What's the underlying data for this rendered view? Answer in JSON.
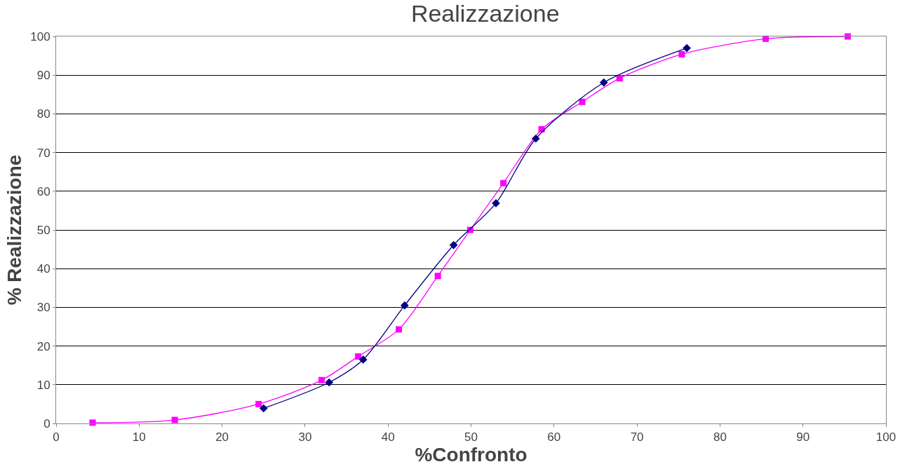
{
  "chart_data": {
    "type": "line",
    "title": "Realizzazione",
    "xlabel": "%Confronto",
    "ylabel": "% Realizzazione",
    "xlim": [
      0,
      100
    ],
    "xticks": [
      0,
      10,
      20,
      30,
      40,
      50,
      60,
      70,
      80,
      90,
      100
    ],
    "ylim": [
      0,
      100
    ],
    "yticks": [
      0,
      10,
      20,
      30,
      40,
      50,
      60,
      70,
      80,
      90,
      100
    ],
    "grid": "y",
    "line_style": "solid",
    "series": [
      {
        "color": "#ff00ff",
        "marker": "square",
        "x": [
          4.4,
          14.3,
          24.4,
          32.0,
          36.4,
          41.3,
          46.0,
          49.9,
          53.9,
          58.5,
          63.4,
          67.9,
          75.4,
          85.5,
          95.4
        ],
        "values": [
          0.2,
          0.9,
          5.0,
          11.2,
          17.3,
          24.3,
          38.1,
          50,
          62.1,
          76.0,
          83.1,
          89.2,
          95.4,
          99.4,
          100
        ]
      },
      {
        "color": "#000080",
        "marker": "diamond",
        "x": [
          25.0,
          32.9,
          37.0,
          42.0,
          47.9,
          53.0,
          57.8,
          66.0,
          76.0
        ],
        "values": [
          3.9,
          10.6,
          16.5,
          30.5,
          46.1,
          56.9,
          73.6,
          88.1,
          97.0
        ]
      }
    ]
  }
}
